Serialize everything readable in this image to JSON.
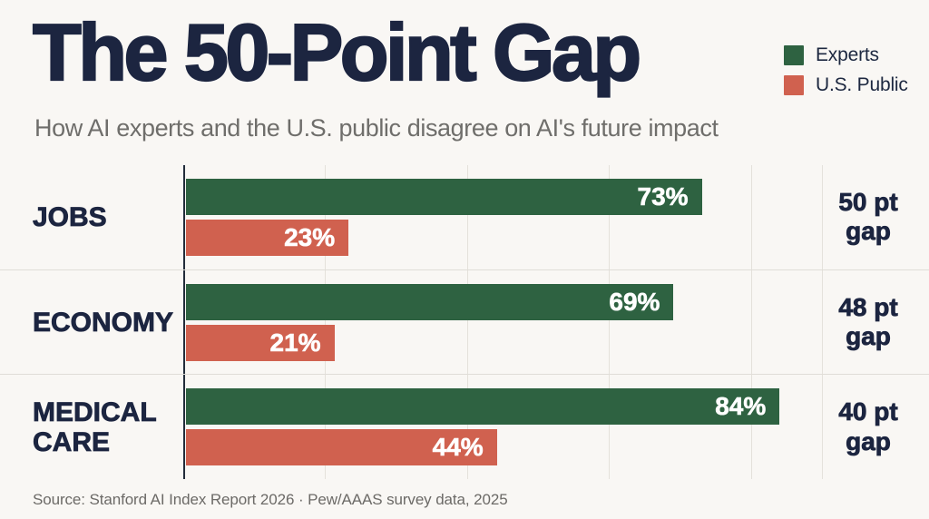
{
  "title": "The 50-Point Gap",
  "subtitle": "How AI experts and the U.S. public disagree on AI's future impact",
  "source": "Source: Stanford AI Index Report 2026 · Pew/AAAS survey data, 2025",
  "colors": {
    "background": "#f9f7f4",
    "title_text": "#1c2540",
    "subtitle_text": "#6f6e6b",
    "experts_bar": "#2e6241",
    "public_bar": "#d0614f",
    "gridline": "#e4e1db",
    "axis_line": "#222c3a",
    "value_label_text": "#ffffff",
    "source_text": "#6c6a67"
  },
  "legend": {
    "items": [
      {
        "label": "Experts",
        "color": "#2e6241"
      },
      {
        "label": "U.S. Public",
        "color": "#d0614f"
      }
    ]
  },
  "chart_data": {
    "type": "bar",
    "orientation": "horizontal",
    "title": "The 50-Point Gap",
    "subtitle": "How AI experts and the U.S. public disagree on AI's future impact",
    "categories": [
      "JOBS",
      "ECONOMY",
      "MEDICAL CARE"
    ],
    "series": [
      {
        "name": "Experts",
        "color": "#2e6241",
        "values": [
          73,
          69,
          84
        ]
      },
      {
        "name": "U.S. Public",
        "color": "#d0614f",
        "values": [
          23,
          21,
          44
        ]
      }
    ],
    "value_suffix": "%",
    "gap_points": [
      50,
      48,
      40
    ],
    "gaps": [
      {
        "line1": "50 pt",
        "line2": "gap"
      },
      {
        "line1": "48 pt",
        "line2": "gap"
      },
      {
        "line1": "40 pt",
        "line2": "gap"
      }
    ],
    "xlim": [
      0,
      90
    ],
    "gridlines": [
      20,
      40,
      60,
      80
    ],
    "grid": true,
    "legend_position": "top-right",
    "value_labels": "inside-end"
  }
}
